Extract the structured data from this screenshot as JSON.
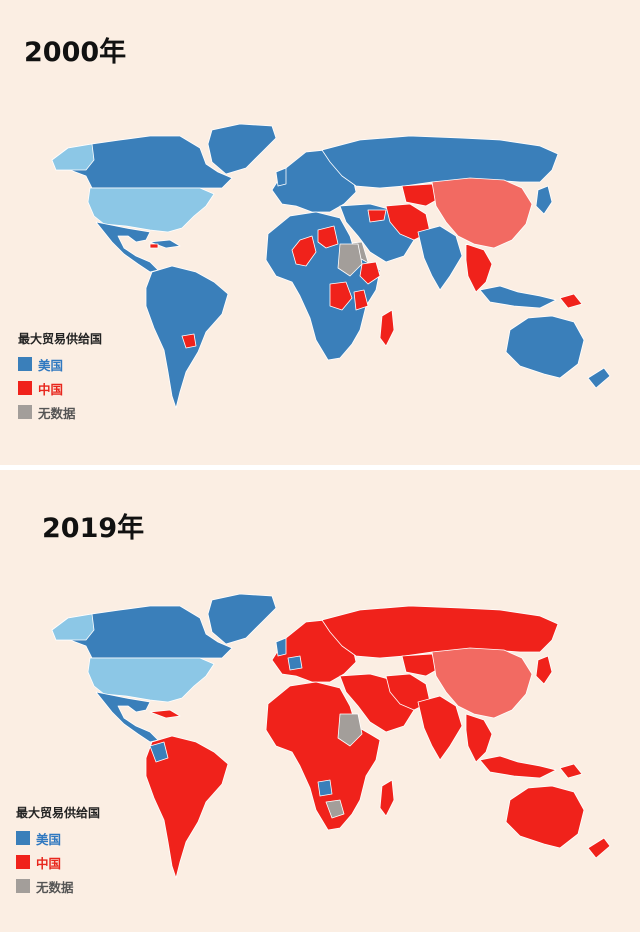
{
  "colors": {
    "background": "#fbeee3",
    "usa": "#3a7fba",
    "usa_light": "#8cc7e6",
    "china": "#f0221b",
    "china_light": "#f26a62",
    "nodata": "#a39e9a",
    "border": "#ffffff"
  },
  "legend": {
    "title": "最大贸易供给国",
    "items": [
      {
        "label": "美国",
        "color": "#3a7fba",
        "text_color": "#2f78c0"
      },
      {
        "label": "中国",
        "color": "#f0221b",
        "text_color": "#e8261c"
      },
      {
        "label": "无数据",
        "color": "#a39e9a",
        "text_color": "#555555"
      }
    ]
  },
  "maps": [
    {
      "year_label": "2000年",
      "dominant": "usa"
    },
    {
      "year_label": "2019年",
      "dominant": "china"
    }
  ]
}
